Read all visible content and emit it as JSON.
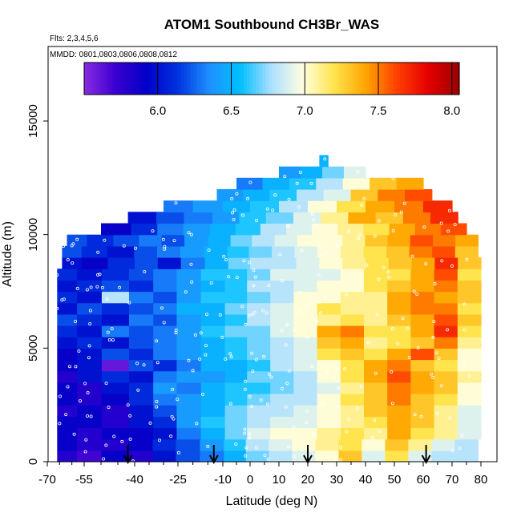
{
  "chart_data": {
    "type": "heatmap",
    "title": "ATOM1 Southbound CH3Br_WAS",
    "subtitle_flights": "Flts: 2,3,4,5,6",
    "subtitle_dates": "MMDD: 0801,0803,0806,0808,0812",
    "xlabel": "Latitude (deg N)",
    "ylabel": "Altitude (m)",
    "xlim": [
      -70,
      83
    ],
    "ylim": [
      0,
      17500
    ],
    "x_ticks": [
      -70,
      -55,
      -40,
      -25,
      -10,
      0,
      10,
      20,
      30,
      40,
      50,
      60,
      70,
      80
    ],
    "x_tick_labels": [
      "-70",
      "-55",
      "-40",
      "-25",
      "-10",
      "0",
      "10",
      "20",
      "30",
      "40",
      "50",
      "60",
      "70",
      "80"
    ],
    "y_ticks": [
      0,
      5000,
      10000,
      15000
    ],
    "y_tick_labels": [
      "0",
      "5000",
      "10000",
      "15000"
    ],
    "colorbar": {
      "min": 5.5,
      "max": 8.05,
      "ticks": [
        6.0,
        6.5,
        7.0,
        7.5,
        8.0
      ],
      "tick_labels": [
        "6.0",
        "6.5",
        "7.0",
        "7.5",
        "8.0"
      ],
      "colors": [
        "#8a2be2",
        "#3b00d0",
        "#0000c8",
        "#0033e0",
        "#1e90ff",
        "#00bfff",
        "#aee0ff",
        "#ffffe0",
        "#ffe44d",
        "#ffa500",
        "#ff4000",
        "#e60000",
        "#9a0000"
      ]
    },
    "arrows_latitude": [
      -42,
      -13,
      20,
      61
    ],
    "rows": [
      {
        "alt": 250,
        "lat_min": -66,
        "lat_max": 79,
        "values": [
          5.8,
          5.7,
          5.9,
          5.8,
          6.0,
          6.2,
          6.3,
          6.5,
          6.7,
          6.8,
          6.9,
          7.0,
          7.3,
          6.9,
          7.2,
          6.9,
          6.8,
          6.8
        ]
      },
      {
        "alt": 750,
        "lat_min": -66,
        "lat_max": 79,
        "values": [
          5.9,
          5.8,
          5.8,
          5.9,
          6.1,
          6.2,
          6.4,
          6.6,
          6.8,
          6.9,
          7.0,
          7.1,
          7.2,
          7.0,
          7.3,
          7.1,
          6.9,
          6.8
        ]
      },
      {
        "alt": 1250,
        "lat_min": -66,
        "lat_max": 80,
        "values": [
          5.9,
          5.8,
          5.9,
          5.9,
          6.0,
          6.3,
          6.5,
          6.7,
          6.9,
          7.0,
          7.0,
          7.1,
          7.2,
          7.1,
          7.4,
          7.2,
          7.1,
          6.9
        ]
      },
      {
        "alt": 1750,
        "lat_min": -66,
        "lat_max": 80,
        "values": [
          5.9,
          5.9,
          5.8,
          6.0,
          6.1,
          6.4,
          6.6,
          6.7,
          6.8,
          6.9,
          6.9,
          7.0,
          7.1,
          7.2,
          7.4,
          7.3,
          7.1,
          6.9
        ]
      },
      {
        "alt": 2250,
        "lat_min": -66,
        "lat_max": 80,
        "values": [
          5.8,
          5.9,
          5.8,
          6.0,
          6.2,
          6.4,
          6.5,
          6.7,
          6.8,
          6.8,
          6.9,
          7.0,
          7.1,
          7.3,
          7.4,
          7.3,
          7.1,
          6.9
        ]
      },
      {
        "alt": 2750,
        "lat_min": -66,
        "lat_max": 80,
        "values": [
          5.9,
          5.8,
          5.9,
          6.1,
          6.3,
          6.4,
          6.5,
          6.6,
          6.7,
          6.8,
          6.8,
          7.0,
          7.2,
          7.3,
          7.5,
          7.3,
          7.2,
          7.0
        ]
      },
      {
        "alt": 3250,
        "lat_min": -66,
        "lat_max": 80,
        "values": [
          5.9,
          5.8,
          6.0,
          6.1,
          6.4,
          6.3,
          6.5,
          6.6,
          6.6,
          6.7,
          6.8,
          6.9,
          7.1,
          7.3,
          7.5,
          7.4,
          7.3,
          7.0
        ]
      },
      {
        "alt": 3750,
        "lat_min": -66,
        "lat_max": 80,
        "values": [
          5.8,
          6.0,
          6.1,
          6.0,
          6.3,
          6.4,
          6.4,
          6.5,
          6.7,
          6.7,
          6.8,
          7.0,
          7.2,
          7.4,
          7.6,
          7.4,
          7.3,
          7.1
        ]
      },
      {
        "alt": 4250,
        "lat_min": -66,
        "lat_max": 80,
        "values": [
          5.9,
          6.0,
          5.6,
          6.2,
          6.1,
          6.3,
          6.5,
          6.5,
          6.6,
          6.8,
          6.9,
          7.0,
          7.2,
          7.4,
          7.5,
          7.3,
          7.2,
          7.0
        ]
      },
      {
        "alt": 4750,
        "lat_min": -66,
        "lat_max": 80,
        "values": [
          5.9,
          6.0,
          6.2,
          6.1,
          6.3,
          6.4,
          6.5,
          6.6,
          6.7,
          6.8,
          6.9,
          7.2,
          7.3,
          7.2,
          7.4,
          7.6,
          7.3,
          7.0
        ]
      },
      {
        "alt": 5250,
        "lat_min": -66,
        "lat_max": 80,
        "values": [
          6.0,
          6.1,
          6.0,
          6.2,
          6.3,
          6.4,
          6.5,
          6.6,
          6.7,
          6.8,
          6.9,
          7.3,
          7.4,
          7.1,
          7.2,
          7.3,
          7.5,
          7.1
        ]
      },
      {
        "alt": 5750,
        "lat_min": -66,
        "lat_max": 80,
        "values": [
          6.1,
          6.0,
          6.3,
          6.2,
          6.3,
          6.4,
          6.6,
          6.7,
          6.7,
          6.9,
          7.0,
          7.4,
          7.5,
          7.2,
          7.2,
          7.4,
          7.7,
          7.2
        ]
      },
      {
        "alt": 6250,
        "lat_min": -66,
        "lat_max": 80,
        "values": [
          6.2,
          6.1,
          6.0,
          6.3,
          6.2,
          6.4,
          6.5,
          6.6,
          6.8,
          6.9,
          7.0,
          7.1,
          7.2,
          7.1,
          7.3,
          7.4,
          7.6,
          7.3
        ]
      },
      {
        "alt": 6750,
        "lat_min": -66,
        "lat_max": 80,
        "values": [
          6.0,
          6.2,
          6.1,
          6.2,
          6.3,
          6.5,
          6.5,
          6.7,
          6.8,
          6.9,
          7.0,
          7.2,
          7.1,
          7.1,
          7.4,
          7.5,
          7.5,
          7.2
        ]
      },
      {
        "alt": 7250,
        "lat_min": -66,
        "lat_max": 80,
        "values": [
          6.1,
          6.0,
          6.8,
          6.3,
          6.2,
          6.4,
          6.6,
          6.6,
          6.7,
          6.8,
          7.0,
          7.0,
          7.1,
          7.1,
          7.4,
          7.5,
          7.4,
          7.3
        ]
      },
      {
        "alt": 7750,
        "lat_min": -66,
        "lat_max": 80,
        "values": [
          6.0,
          6.1,
          6.2,
          6.1,
          6.3,
          6.4,
          6.5,
          6.6,
          6.8,
          6.8,
          6.9,
          7.0,
          7.0,
          7.2,
          7.3,
          7.4,
          7.5,
          7.3
        ]
      },
      {
        "alt": 8250,
        "lat_min": -66,
        "lat_max": 80,
        "values": [
          6.1,
          6.0,
          6.1,
          6.2,
          6.3,
          6.4,
          6.6,
          6.6,
          6.7,
          6.9,
          6.9,
          6.9,
          7.0,
          7.2,
          7.2,
          7.4,
          7.6,
          7.2
        ]
      },
      {
        "alt": 8750,
        "lat_min": -64,
        "lat_max": 80,
        "values": [
          6.0,
          5.9,
          6.1,
          6.2,
          6.0,
          6.3,
          6.5,
          6.7,
          6.8,
          6.8,
          6.9,
          7.0,
          7.1,
          7.2,
          7.3,
          7.4,
          7.7,
          7.3
        ]
      },
      {
        "alt": 9250,
        "lat_min": -64,
        "lat_max": 79,
        "values": [
          6.2,
          6.1,
          6.0,
          6.2,
          6.3,
          6.4,
          6.5,
          6.6,
          6.7,
          6.8,
          6.9,
          7.0,
          7.1,
          7.2,
          7.3,
          7.5,
          7.6,
          7.3
        ]
      },
      {
        "alt": 9750,
        "lat_min": -62,
        "lat_max": 79,
        "values": [
          6.2,
          6.1,
          6.2,
          6.3,
          6.2,
          6.4,
          6.5,
          6.7,
          6.8,
          6.9,
          7.0,
          7.0,
          7.1,
          7.3,
          7.4,
          7.6,
          7.5,
          7.4
        ]
      },
      {
        "alt": 10250,
        "lat_min": -50,
        "lat_max": 75,
        "values": [
          5.9,
          6.1,
          6.3,
          6.4,
          6.5,
          6.6,
          6.8,
          6.9,
          7.0,
          7.1,
          7.2,
          7.4,
          7.5,
          7.6
        ]
      },
      {
        "alt": 10750,
        "lat_min": -42,
        "lat_max": 72,
        "values": [
          6.0,
          6.2,
          6.3,
          6.4,
          6.6,
          6.7,
          6.9,
          7.1,
          7.4,
          7.3,
          7.5,
          7.7
        ]
      },
      {
        "alt": 11250,
        "lat_min": -30,
        "lat_max": 70,
        "values": [
          6.3,
          6.4,
          6.5,
          6.6,
          6.8,
          7.0,
          7.2,
          7.4,
          7.5,
          7.7
        ]
      },
      {
        "alt": 11750,
        "lat_min": -12,
        "lat_max": 63,
        "values": [
          6.4,
          6.5,
          6.6,
          6.8,
          6.9,
          7.3,
          7.5,
          7.6
        ]
      },
      {
        "alt": 12250,
        "lat_min": -5,
        "lat_max": 60,
        "values": [
          6.3,
          6.5,
          6.6,
          6.8,
          7.0,
          7.3,
          7.4
        ]
      },
      {
        "alt": 12750,
        "lat_min": 10,
        "lat_max": 40,
        "values": [
          6.4,
          6.5,
          6.7,
          6.9
        ]
      },
      {
        "alt": 13250,
        "lat_min": 24,
        "lat_max": 27,
        "values": [
          6.5
        ]
      }
    ],
    "grid": false,
    "legend": "colorbar-top"
  }
}
